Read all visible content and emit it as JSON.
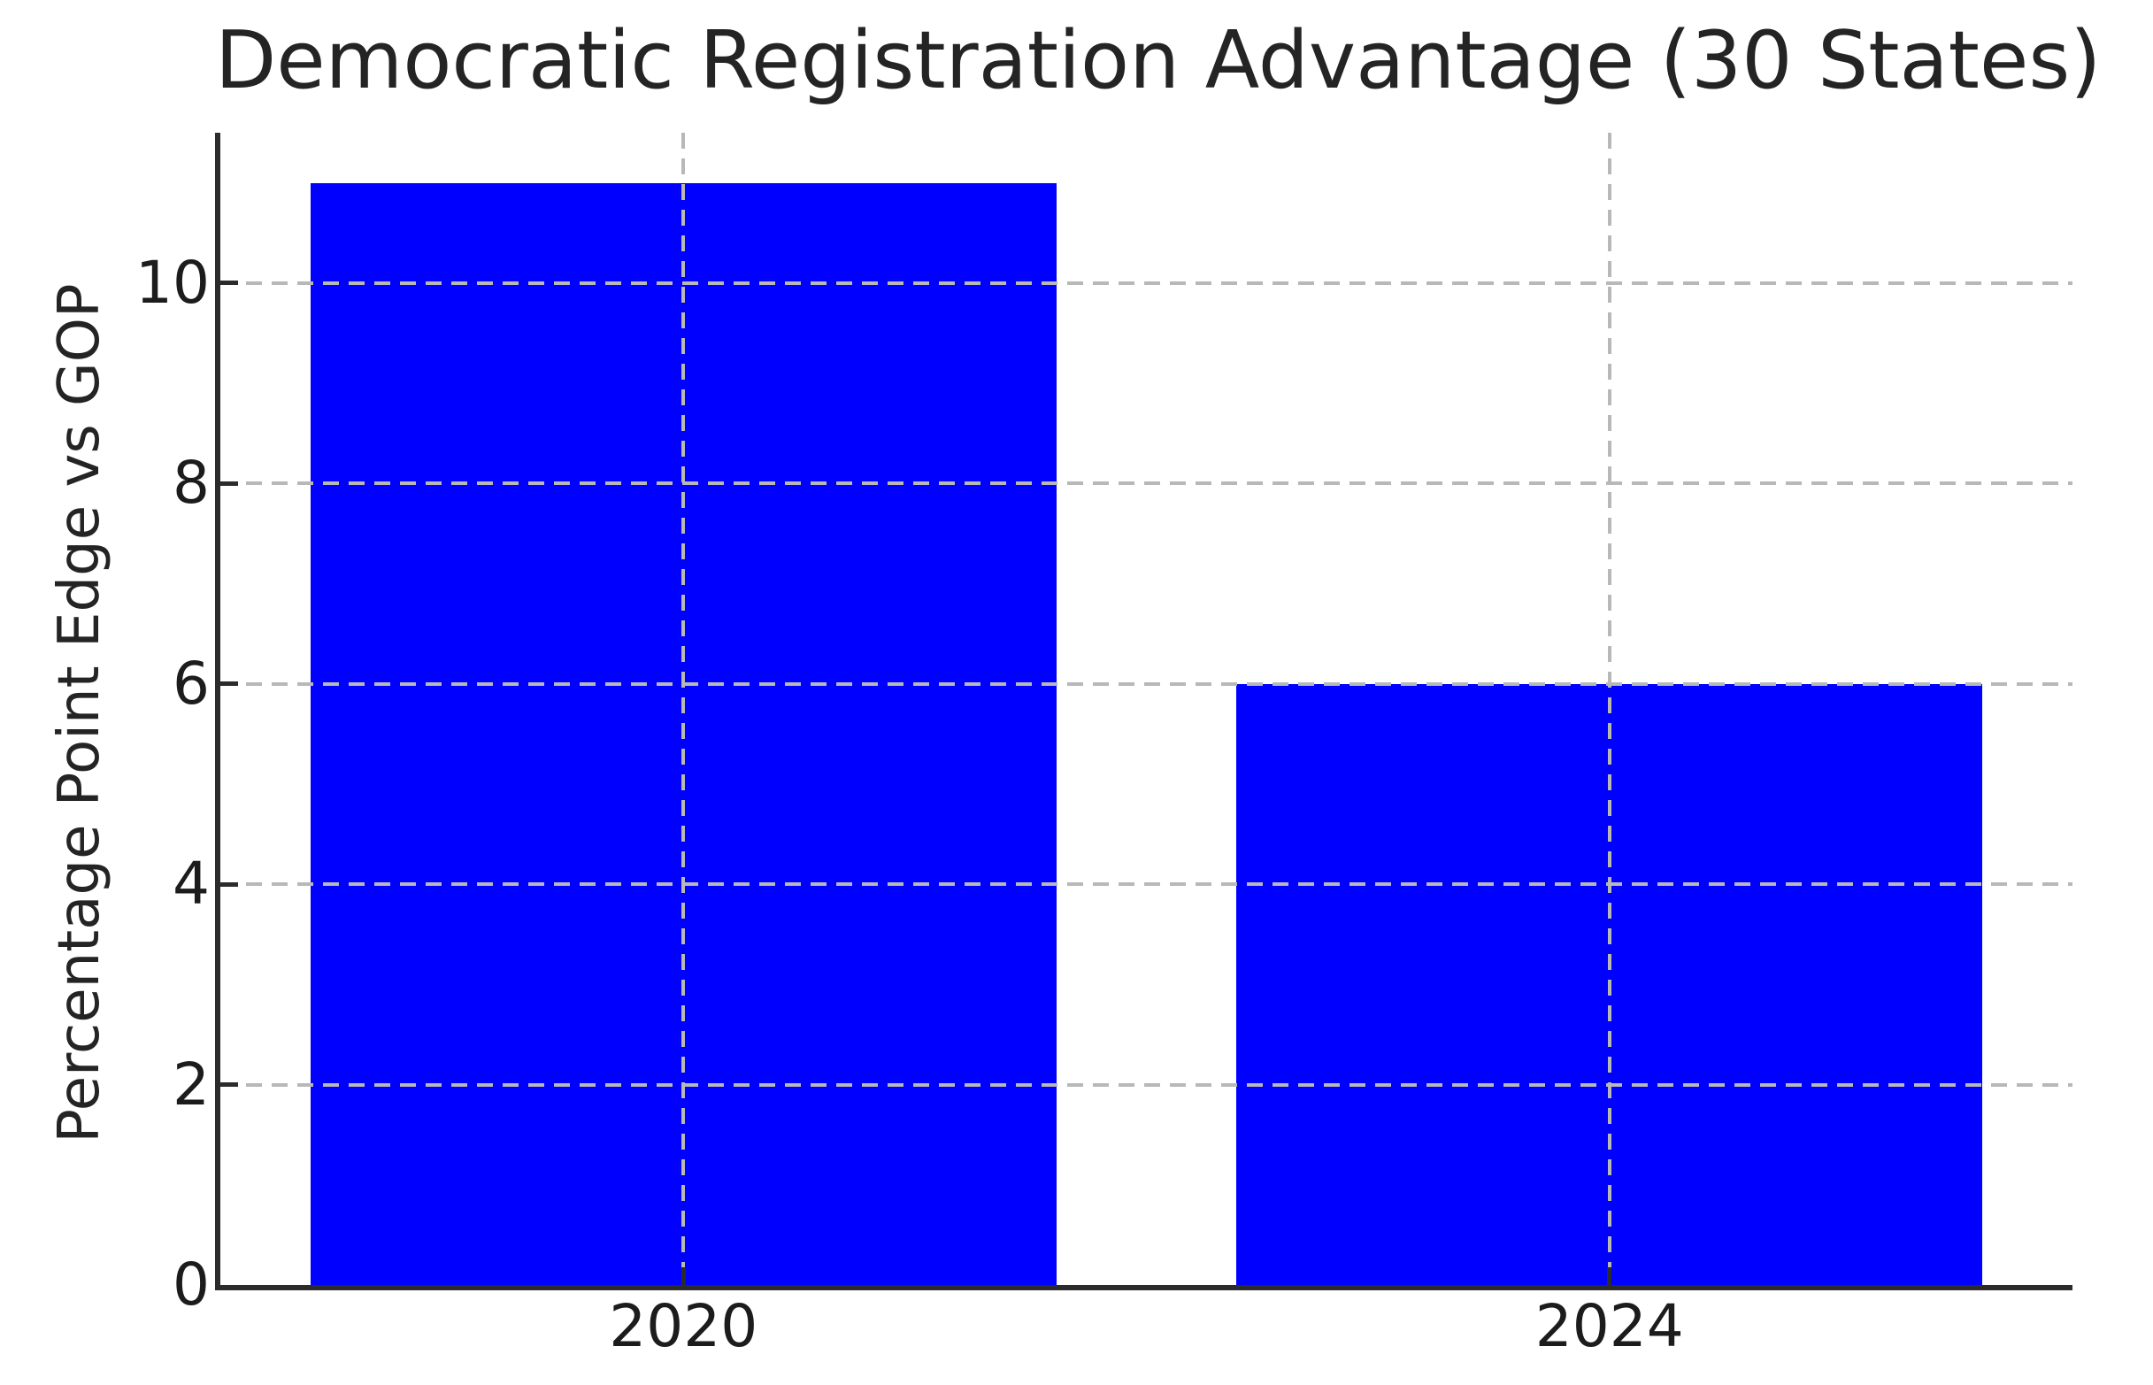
{
  "chart_data": {
    "type": "bar",
    "title": "Democratic Registration Advantage (30 States)",
    "ylabel": "Percentage Point Edge vs GOP",
    "xlabel": "",
    "categories": [
      "2020",
      "2024"
    ],
    "values": [
      11,
      6
    ],
    "yticks": [
      0,
      2,
      4,
      6,
      8,
      10
    ],
    "ylim": [
      0,
      11.5
    ],
    "bar_color": "#0000ff",
    "grid_color": "#b8b8b8",
    "grid_style": "dashed",
    "grid_above_bars": true,
    "vertical_gridlines_at_bar_centers": true,
    "legend_position": "none",
    "bar_centers_fraction": [
      0.25,
      0.75
    ],
    "bar_width_fraction": 0.403
  },
  "colors": {
    "background": "#ffffff",
    "spine": "#2b2b2b",
    "tick_text": "#1c1c1c",
    "title_text": "#242424"
  }
}
